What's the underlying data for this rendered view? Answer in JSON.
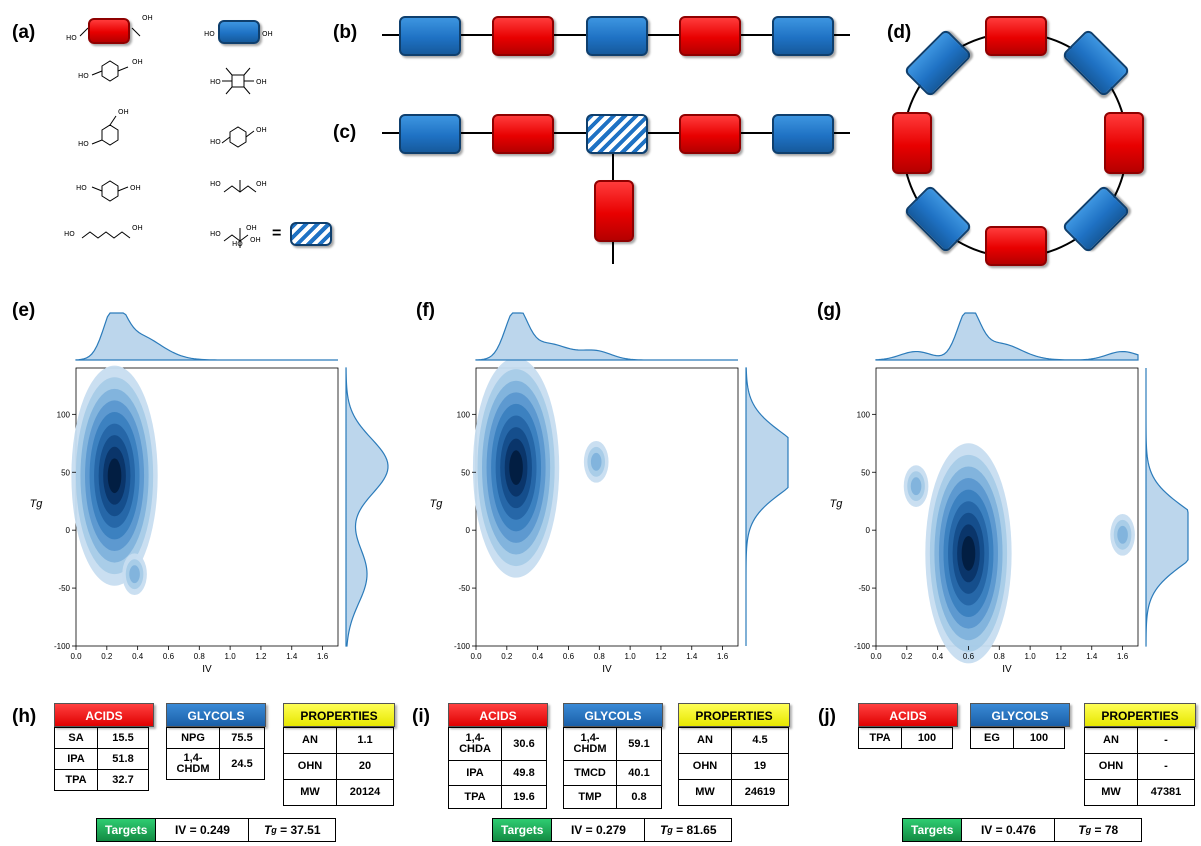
{
  "panel_labels": {
    "a": "(a)",
    "b": "(b)",
    "c": "(c)",
    "d": "(d)",
    "e": "(e)",
    "f": "(f)",
    "g": "(g)",
    "h": "(h)",
    "i": "(i)",
    "j": "(j)"
  },
  "panel_a": {
    "oh": "OH",
    "ho": "HO",
    "equals": "="
  },
  "chart_data": [
    {
      "type": "kde_joint",
      "panel": "e",
      "xlabel": "IV",
      "ylabel": "Tg",
      "xlim": [
        0.0,
        1.7
      ],
      "ylim": [
        -100,
        140
      ],
      "xticks": [
        "0.0",
        "0.2",
        "0.4",
        "0.6",
        "0.8",
        "1.0",
        "1.2",
        "1.4",
        "1.6"
      ],
      "yticks": [
        "100",
        "50",
        "0",
        "-50",
        "-100"
      ],
      "density_peaks": [
        {
          "x": 0.25,
          "y": 47
        },
        {
          "x": 0.38,
          "y": -38
        }
      ],
      "marginal_x_peak": 0.25,
      "marginal_y_peak": 55
    },
    {
      "type": "kde_joint",
      "panel": "f",
      "xlabel": "IV",
      "ylabel": "Tg",
      "xlim": [
        0.0,
        1.7
      ],
      "ylim": [
        -100,
        140
      ],
      "xticks": [
        "0.0",
        "0.2",
        "0.4",
        "0.6",
        "0.8",
        "1.0",
        "1.2",
        "1.4",
        "1.6"
      ],
      "yticks": [
        "100",
        "50",
        "0",
        "-50",
        "-100"
      ],
      "density_peaks": [
        {
          "x": 0.26,
          "y": 54
        },
        {
          "x": 0.78,
          "y": 59
        }
      ],
      "marginal_x_peak": 0.26,
      "marginal_y_peak": 58
    },
    {
      "type": "kde_joint",
      "panel": "g",
      "xlabel": "IV",
      "ylabel": "Tg",
      "xlim": [
        0.0,
        1.7
      ],
      "ylim": [
        -100,
        140
      ],
      "xticks": [
        "0.0",
        "0.2",
        "0.4",
        "0.6",
        "0.8",
        "1.0",
        "1.2",
        "1.4",
        "1.6"
      ],
      "yticks": [
        "100",
        "50",
        "0",
        "-50",
        "-100"
      ],
      "density_peaks": [
        {
          "x": 0.6,
          "y": -20
        },
        {
          "x": 0.26,
          "y": 38
        },
        {
          "x": 1.6,
          "y": -4
        }
      ],
      "marginal_x_peak": 0.6,
      "marginal_y_peak": -5
    }
  ],
  "tables": {
    "h": {
      "acids_label": "ACIDS",
      "acids": [
        [
          "SA",
          "15.5"
        ],
        [
          "IPA",
          "51.8"
        ],
        [
          "TPA",
          "32.7"
        ]
      ],
      "glycols_label": "GLYCOLS",
      "glycols": [
        [
          "NPG",
          "75.5"
        ],
        [
          "1,4-CHDM",
          "24.5"
        ]
      ],
      "properties_label": "PROPERTIES",
      "properties": [
        [
          "AN",
          "1.1"
        ],
        [
          "OHN",
          "20"
        ],
        [
          "MW",
          "20124"
        ]
      ],
      "targets_label": "Targets",
      "iv": "IV = 0.249",
      "tg_label": "T",
      "tg_sub": "g",
      "tg_value": " = 37.51"
    },
    "i": {
      "acids_label": "ACIDS",
      "acids": [
        [
          "1,4-CHDA",
          "30.6"
        ],
        [
          "IPA",
          "49.8"
        ],
        [
          "TPA",
          "19.6"
        ]
      ],
      "glycols_label": "GLYCOLS",
      "glycols": [
        [
          "1,4-CHDM",
          "59.1"
        ],
        [
          "TMCD",
          "40.1"
        ],
        [
          "TMP",
          "0.8"
        ]
      ],
      "properties_label": "PROPERTIES",
      "properties": [
        [
          "AN",
          "4.5"
        ],
        [
          "OHN",
          "19"
        ],
        [
          "MW",
          "24619"
        ]
      ],
      "targets_label": "Targets",
      "iv": "IV = 0.279",
      "tg_label": "T",
      "tg_sub": "g",
      "tg_value": " = 81.65"
    },
    "j": {
      "acids_label": "ACIDS",
      "acids": [
        [
          "TPA",
          "100"
        ]
      ],
      "glycols_label": "GLYCOLS",
      "glycols": [
        [
          "EG",
          "100"
        ]
      ],
      "properties_label": "PROPERTIES",
      "properties": [
        [
          "AN",
          "-"
        ],
        [
          "OHN",
          "-"
        ],
        [
          "MW",
          "47381"
        ]
      ],
      "targets_label": "Targets",
      "iv": "IV = 0.476",
      "tg_label": "T",
      "tg_sub": "g",
      "tg_value": " = 78"
    }
  },
  "colors": {
    "acid_red": "#e80000",
    "glycol_blue": "#1f72c4",
    "kde_blue": "#2b7bba",
    "prop_yellow": "#f0f000",
    "target_green": "#1aa355"
  }
}
